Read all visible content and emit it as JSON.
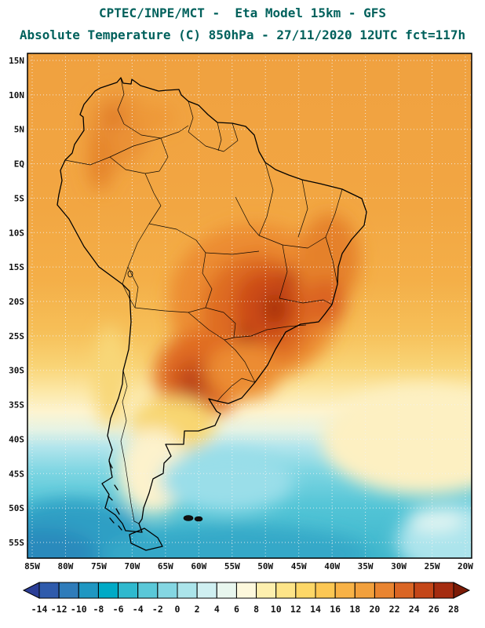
{
  "header": {
    "title_line1": "CPTEC/INPE/MCT -  Eta Model 15km - GFS",
    "title_line2": "Absolute Temperature (C) 850hPa - 27/11/2020 12UTC fct=117h",
    "title_color": "#00615c"
  },
  "map": {
    "region": "South America",
    "lat_labels": [
      "15N",
      "10N",
      "5N",
      "EQ",
      "5S",
      "10S",
      "15S",
      "20S",
      "25S",
      "30S",
      "35S",
      "40S",
      "45S",
      "50S",
      "55S"
    ],
    "lon_labels": [
      "85W",
      "80W",
      "75W",
      "70W",
      "65W",
      "60W",
      "55W",
      "50W",
      "45W",
      "40W",
      "35W",
      "30W",
      "25W",
      "20W"
    ]
  },
  "colorbar": {
    "unit": "C",
    "tick_labels": [
      "-14",
      "-12",
      "-10",
      "-8",
      "-6",
      "-4",
      "-2",
      "0",
      "2",
      "4",
      "6",
      "8",
      "10",
      "12",
      "14",
      "16",
      "18",
      "20",
      "22",
      "24",
      "26",
      "28"
    ],
    "segment_colors": [
      "#2b3e96",
      "#2f5bac",
      "#2f7cba",
      "#1f97c2",
      "#00aac6",
      "#2fb9ce",
      "#5ac8d8",
      "#84d6e2",
      "#abe4ea",
      "#cfeff1",
      "#e8f6ee",
      "#fdf8dc",
      "#fdefae",
      "#fde488",
      "#fdd767",
      "#fcc753",
      "#f8b246",
      "#f2a03c",
      "#e98430",
      "#da6524",
      "#c44618",
      "#a52c10",
      "#7c1b06"
    ]
  },
  "chart_data": {
    "type": "heatmap",
    "title": "Absolute Temperature (C) 850hPa",
    "model": "Eta Model 15km - GFS",
    "run": "27/11/2020 12UTC",
    "forecast": "fct=117h",
    "source": "CPTEC/INPE/MCT",
    "lat_range": [
      "15N",
      "55S"
    ],
    "lon_range": [
      "85W",
      "20W"
    ],
    "scale_min": -14,
    "scale_max": 28,
    "scale_step": 2
  }
}
